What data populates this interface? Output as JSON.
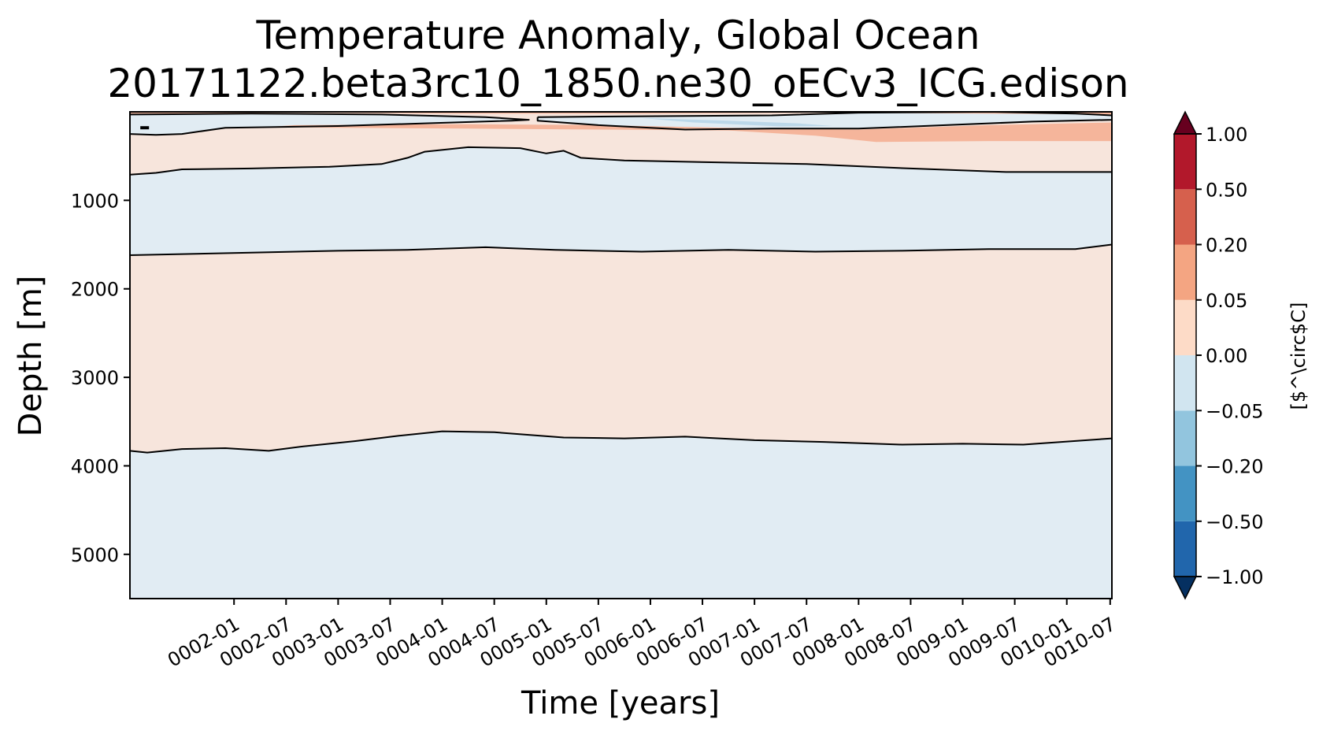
{
  "chart_data": {
    "type": "heatmap",
    "title": "Temperature Anomaly, Global Ocean",
    "subtitle": "20171122.beta3rc10_1850.ne30_oECv3_ICG.edison",
    "xlabel": "Time [years]",
    "ylabel": "Depth [m]",
    "colorbar_label": "[$^\\circ$C]",
    "colorbar_label_display": "[$^\\circ$C]",
    "x_range_months": [
      1.0,
      114.2
    ],
    "x_ticks": [
      {
        "label": "0002-01",
        "month": 13
      },
      {
        "label": "0002-07",
        "month": 19
      },
      {
        "label": "0003-01",
        "month": 25
      },
      {
        "label": "0003-07",
        "month": 31
      },
      {
        "label": "0004-01",
        "month": 37
      },
      {
        "label": "0004-07",
        "month": 43
      },
      {
        "label": "0005-01",
        "month": 49
      },
      {
        "label": "0005-07",
        "month": 55
      },
      {
        "label": "0006-01",
        "month": 61
      },
      {
        "label": "0006-07",
        "month": 67
      },
      {
        "label": "0007-01",
        "month": 73
      },
      {
        "label": "0007-07",
        "month": 79
      },
      {
        "label": "0008-01",
        "month": 85
      },
      {
        "label": "0008-07",
        "month": 91
      },
      {
        "label": "0009-01",
        "month": 97
      },
      {
        "label": "0009-07",
        "month": 103
      },
      {
        "label": "0010-01",
        "month": 109
      },
      {
        "label": "0010-07",
        "month": 114
      }
    ],
    "y_range": [
      0,
      5500
    ],
    "y_ticks": [
      1000,
      2000,
      3000,
      4000,
      5000
    ],
    "levels": [
      -1.0,
      -0.5,
      -0.2,
      -0.05,
      0.0,
      0.05,
      0.2,
      0.5,
      1.0
    ],
    "level_labels": [
      "−1.00",
      "−0.50",
      "−0.20",
      "−0.05",
      "0.00",
      "0.05",
      "0.20",
      "0.50",
      "1.00"
    ],
    "bin_colors": [
      "#2166ac",
      "#4393c3",
      "#92c5de",
      "#d1e5f0",
      "#fddbc7",
      "#f4a582",
      "#d6604d",
      "#b2182b"
    ],
    "extend_low_color": "#053061",
    "extend_high_color": "#67001f",
    "regions": [
      {
        "id": "base-warm",
        "anomaly_class": "0.00 to 0.05",
        "color": "#f7e5dc",
        "points": [
          [
            1,
            0
          ],
          [
            114.2,
            0
          ],
          [
            114.2,
            5500
          ],
          [
            1,
            5500
          ]
        ]
      },
      {
        "id": "deep-cool",
        "anomaly_class": "-0.05 to 0.00",
        "color": "#e1ecf3",
        "points": [
          [
            1,
            3830
          ],
          [
            3,
            3850
          ],
          [
            7,
            3810
          ],
          [
            12,
            3800
          ],
          [
            17,
            3830
          ],
          [
            21,
            3780
          ],
          [
            27,
            3720
          ],
          [
            32,
            3660
          ],
          [
            37,
            3610
          ],
          [
            43,
            3620
          ],
          [
            51,
            3680
          ],
          [
            58,
            3690
          ],
          [
            65,
            3670
          ],
          [
            73,
            3710
          ],
          [
            81,
            3730
          ],
          [
            90,
            3760
          ],
          [
            97,
            3750
          ],
          [
            104,
            3760
          ],
          [
            114.2,
            3690
          ],
          [
            114.2,
            5500
          ],
          [
            1,
            5500
          ]
        ]
      },
      {
        "id": "mid-cool",
        "anomaly_class": "-0.05 to 0.00",
        "color": "#e1ecf3",
        "points": [
          [
            1,
            710
          ],
          [
            4,
            690
          ],
          [
            7,
            650
          ],
          [
            15,
            640
          ],
          [
            24,
            620
          ],
          [
            30,
            590
          ],
          [
            33,
            520
          ],
          [
            35,
            450
          ],
          [
            40,
            400
          ],
          [
            46,
            410
          ],
          [
            49,
            470
          ],
          [
            51,
            440
          ],
          [
            53,
            520
          ],
          [
            58,
            550
          ],
          [
            68,
            570
          ],
          [
            79,
            590
          ],
          [
            91,
            640
          ],
          [
            102,
            680
          ],
          [
            114.2,
            680
          ],
          [
            114.2,
            1500
          ],
          [
            110,
            1550
          ],
          [
            100,
            1550
          ],
          [
            90,
            1570
          ],
          [
            80,
            1580
          ],
          [
            70,
            1560
          ],
          [
            60,
            1580
          ],
          [
            50,
            1560
          ],
          [
            42,
            1530
          ],
          [
            33,
            1560
          ],
          [
            25,
            1570
          ],
          [
            15,
            1590
          ],
          [
            1,
            1620
          ]
        ]
      },
      {
        "id": "surface-cool-left",
        "anomaly_class": "-0.05 to 0.00",
        "color": "#e1ecf3",
        "points": [
          [
            1,
            30
          ],
          [
            15,
            20
          ],
          [
            30,
            30
          ],
          [
            42,
            60
          ],
          [
            47,
            90
          ],
          [
            45,
            100
          ],
          [
            35,
            130
          ],
          [
            25,
            160
          ],
          [
            12,
            180
          ],
          [
            7,
            250
          ],
          [
            4,
            260
          ],
          [
            1,
            250
          ]
        ]
      },
      {
        "id": "surface-cool-right",
        "anomaly_class": "-0.05 to 0.00",
        "color": "#e1ecf3",
        "points": [
          [
            48,
            60
          ],
          [
            60,
            50
          ],
          [
            75,
            40
          ],
          [
            85,
            10
          ],
          [
            100,
            0
          ],
          [
            110,
            20
          ],
          [
            114.2,
            40
          ],
          [
            114.2,
            90
          ],
          [
            105,
            110
          ],
          [
            95,
            150
          ],
          [
            85,
            190
          ],
          [
            75,
            190
          ],
          [
            65,
            200
          ],
          [
            55,
            150
          ],
          [
            48,
            100
          ]
        ]
      },
      {
        "id": "surface-cooler",
        "anomaly_class": "-0.20 to -0.05",
        "color": "#bcd8e9",
        "points": [
          [
            60,
            70
          ],
          [
            70,
            100
          ],
          [
            78,
            130
          ],
          [
            82,
            160
          ],
          [
            76,
            165
          ],
          [
            66,
            120
          ]
        ]
      },
      {
        "id": "subsurface-warm",
        "anomaly_class": "0.05 to 0.20",
        "color": "#f5b59b",
        "points": [
          [
            20,
            150
          ],
          [
            40,
            140
          ],
          [
            55,
            150
          ],
          [
            70,
            180
          ],
          [
            85,
            200
          ],
          [
            100,
            150
          ],
          [
            114.2,
            120
          ],
          [
            114.2,
            330
          ],
          [
            100,
            330
          ],
          [
            87,
            340
          ],
          [
            80,
            270
          ],
          [
            70,
            210
          ],
          [
            55,
            200
          ],
          [
            40,
            190
          ],
          [
            25,
            180
          ],
          [
            17,
            170
          ]
        ]
      },
      {
        "id": "surface-warm-strip",
        "anomaly_class": "0.05 to 0.20",
        "color": "#f5b59b",
        "points": [
          [
            1,
            0
          ],
          [
            114.2,
            0
          ],
          [
            114.2,
            30
          ],
          [
            100,
            20
          ],
          [
            80,
            10
          ],
          [
            60,
            20
          ],
          [
            40,
            20
          ],
          [
            20,
            10
          ],
          [
            1,
            20
          ]
        ]
      }
    ],
    "contours": [
      {
        "id": "contour-deep",
        "level": 0.0,
        "points": [
          [
            1,
            3830
          ],
          [
            3,
            3850
          ],
          [
            7,
            3810
          ],
          [
            12,
            3800
          ],
          [
            17,
            3830
          ],
          [
            21,
            3780
          ],
          [
            27,
            3720
          ],
          [
            32,
            3660
          ],
          [
            37,
            3610
          ],
          [
            43,
            3620
          ],
          [
            51,
            3680
          ],
          [
            58,
            3690
          ],
          [
            65,
            3670
          ],
          [
            73,
            3710
          ],
          [
            81,
            3730
          ],
          [
            90,
            3760
          ],
          [
            97,
            3750
          ],
          [
            104,
            3760
          ],
          [
            114.2,
            3690
          ]
        ]
      },
      {
        "id": "contour-mid-low",
        "level": 0.0,
        "points": [
          [
            1,
            1620
          ],
          [
            15,
            1590
          ],
          [
            25,
            1570
          ],
          [
            33,
            1560
          ],
          [
            42,
            1530
          ],
          [
            50,
            1560
          ],
          [
            60,
            1580
          ],
          [
            70,
            1560
          ],
          [
            80,
            1580
          ],
          [
            90,
            1570
          ],
          [
            100,
            1550
          ],
          [
            110,
            1550
          ],
          [
            114.2,
            1500
          ]
        ]
      },
      {
        "id": "contour-mid-high",
        "level": 0.0,
        "points": [
          [
            1,
            710
          ],
          [
            4,
            690
          ],
          [
            7,
            650
          ],
          [
            15,
            640
          ],
          [
            24,
            620
          ],
          [
            30,
            590
          ],
          [
            33,
            520
          ],
          [
            35,
            450
          ],
          [
            40,
            400
          ],
          [
            46,
            410
          ],
          [
            49,
            470
          ],
          [
            51,
            440
          ],
          [
            53,
            520
          ],
          [
            58,
            550
          ],
          [
            68,
            570
          ],
          [
            79,
            590
          ],
          [
            91,
            640
          ],
          [
            102,
            680
          ],
          [
            114.2,
            680
          ]
        ]
      },
      {
        "id": "contour-surface-left",
        "level": 0.0,
        "points": [
          [
            1,
            30
          ],
          [
            15,
            20
          ],
          [
            30,
            30
          ],
          [
            42,
            60
          ],
          [
            47,
            90
          ],
          [
            45,
            100
          ],
          [
            35,
            130
          ],
          [
            25,
            160
          ],
          [
            12,
            180
          ],
          [
            7,
            250
          ],
          [
            4,
            260
          ],
          [
            1,
            250
          ]
        ]
      },
      {
        "id": "contour-surface-right",
        "level": 0.0,
        "points": [
          [
            48,
            60
          ],
          [
            60,
            50
          ],
          [
            75,
            40
          ],
          [
            85,
            10
          ],
          [
            100,
            0
          ],
          [
            110,
            20
          ],
          [
            114.2,
            40
          ],
          [
            114.2,
            90
          ],
          [
            105,
            110
          ],
          [
            95,
            150
          ],
          [
            85,
            190
          ],
          [
            75,
            190
          ],
          [
            65,
            200
          ],
          [
            55,
            150
          ],
          [
            48,
            100
          ],
          [
            48,
            60
          ]
        ]
      },
      {
        "id": "contour-small-mark",
        "level": 0.0,
        "points": [
          [
            2.2,
            180
          ],
          [
            3.2,
            180
          ]
        ]
      }
    ]
  }
}
